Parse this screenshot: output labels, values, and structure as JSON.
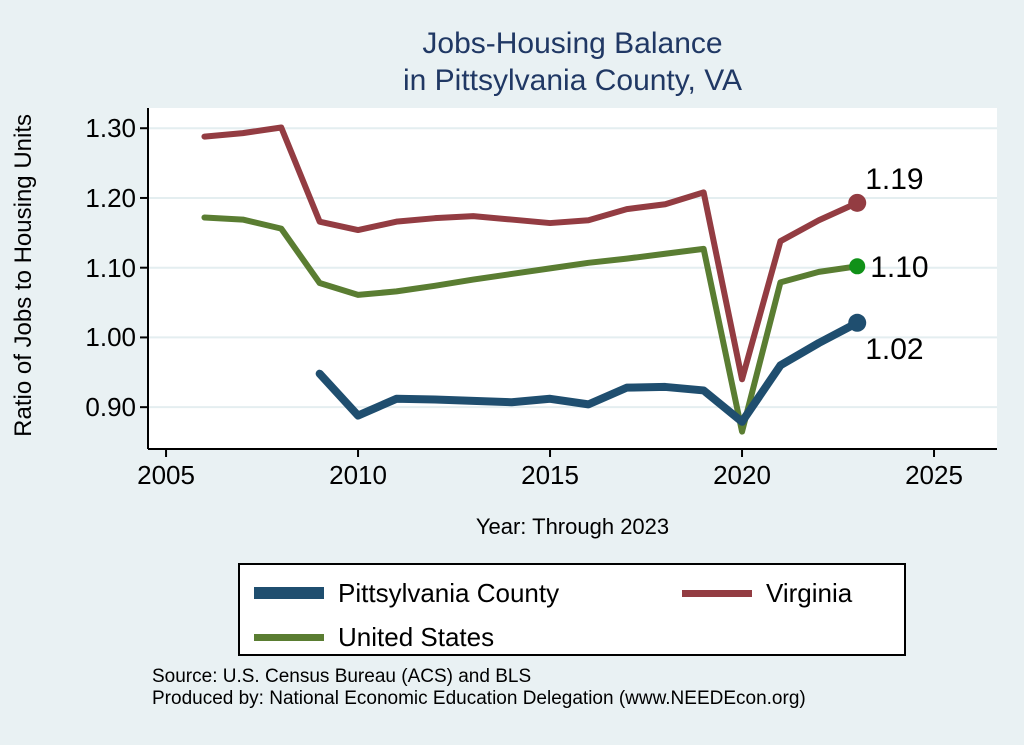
{
  "title": {
    "line1": "Jobs-Housing Balance",
    "line2": "in Pittsylvania County, VA"
  },
  "axes": {
    "y_label": "Ratio of Jobs to Housing Units",
    "x_label": "Year: Through 2023"
  },
  "source": {
    "line1": "Source: U.S. Census Bureau (ACS) and BLS",
    "line2": "Produced by: National Economic Education Delegation (www.NEEDEcon.org)"
  },
  "colors": {
    "background": "#e9f1f3",
    "plot_background": "#ffffff",
    "gridline": "#e4eef0",
    "axis": "#000000",
    "title": "#203864",
    "navy": "#1f4e6f",
    "maroon": "#933c42",
    "olive": "#5a7d32",
    "end_dot_green": "#109118"
  },
  "chart_data": {
    "type": "line",
    "title": "Jobs-Housing Balance in Pittsylvania County, VA",
    "xlabel": "Year: Through 2023",
    "ylabel": "Ratio of Jobs to Housing Units",
    "xlim": [
      2004.53,
      2026.64
    ],
    "ylim": [
      0.84,
      1.329
    ],
    "grid": "horizontal",
    "legend_position": "bottom",
    "xticks": [
      {
        "v": 2005,
        "label": "2005"
      },
      {
        "v": 2010,
        "label": "2010"
      },
      {
        "v": 2015,
        "label": "2015"
      },
      {
        "v": 2020,
        "label": "2020"
      },
      {
        "v": 2025,
        "label": "2025"
      }
    ],
    "yticks": [
      {
        "v": 0.9,
        "label": "0.90"
      },
      {
        "v": 1.0,
        "label": "1.00"
      },
      {
        "v": 1.1,
        "label": "1.10"
      },
      {
        "v": 1.2,
        "label": "1.20"
      },
      {
        "v": 1.3,
        "label": "1.30"
      }
    ],
    "series": [
      {
        "name": "Pittsylvania County",
        "color": "#1f4e6f",
        "line_width": 8,
        "legend_swatch_height": 12,
        "end_label": "1.02",
        "end_label_position": "below-right",
        "end_dot_color": "#1f4e6f",
        "end_dot_radius": 9,
        "x": [
          2009,
          2010,
          2011,
          2012,
          2013,
          2014,
          2015,
          2016,
          2017,
          2018,
          2019,
          2020,
          2021,
          2022,
          2023
        ],
        "y": [
          0.948,
          0.888,
          0.912,
          0.911,
          0.909,
          0.907,
          0.912,
          0.904,
          0.928,
          0.929,
          0.924,
          0.879,
          0.96,
          0.992,
          1.021
        ]
      },
      {
        "name": "Virginia",
        "color": "#933c42",
        "line_width": 6,
        "legend_swatch_height": 7,
        "end_label": "1.19",
        "end_label_position": "above-right",
        "end_dot_color": "#933c42",
        "end_dot_radius": 9,
        "x": [
          2006,
          2007,
          2008,
          2009,
          2010,
          2011,
          2012,
          2013,
          2014,
          2015,
          2016,
          2017,
          2018,
          2019,
          2020,
          2021,
          2022,
          2023
        ],
        "y": [
          1.288,
          1.293,
          1.301,
          1.166,
          1.154,
          1.166,
          1.171,
          1.174,
          1.169,
          1.164,
          1.168,
          1.184,
          1.191,
          1.208,
          0.94,
          1.138,
          1.168,
          1.193
        ]
      },
      {
        "name": "United States",
        "color": "#5a7d32",
        "line_width": 6,
        "legend_swatch_height": 7,
        "end_label": "1.10",
        "end_label_position": "right",
        "end_dot_color": "#109118",
        "end_dot_radius": 8,
        "x": [
          2006,
          2007,
          2008,
          2009,
          2010,
          2011,
          2012,
          2013,
          2014,
          2015,
          2016,
          2017,
          2018,
          2019,
          2020,
          2021,
          2022,
          2023
        ],
        "y": [
          1.172,
          1.169,
          1.156,
          1.078,
          1.061,
          1.066,
          1.074,
          1.083,
          1.091,
          1.099,
          1.107,
          1.113,
          1.12,
          1.127,
          0.865,
          1.079,
          1.094,
          1.102
        ]
      }
    ]
  }
}
